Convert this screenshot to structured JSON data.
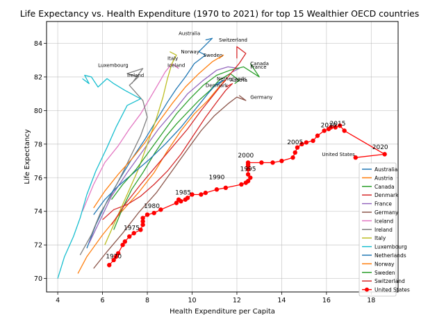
{
  "chart_data": {
    "type": "line",
    "title": "Life Expectancy vs. Health Expenditure (1970 to 2021) for top 15 Wealthier OECD countries",
    "xlabel": "Health Expenditure per Capita",
    "ylabel": "Life Expectancy",
    "xlim": [
      3.5,
      19.2
    ],
    "ylim": [
      69.2,
      85.3
    ],
    "x_ticks": [
      4,
      6,
      8,
      10,
      12,
      14,
      16,
      18
    ],
    "y_ticks": [
      70,
      72,
      74,
      76,
      78,
      80,
      82,
      84
    ],
    "grid": true,
    "legend_position": "lower right",
    "series": [
      {
        "name": "Australia",
        "color": "#1f77b4",
        "points": [
          [
            5.3,
            71.8
          ],
          [
            5.7,
            73.2
          ],
          [
            6.2,
            74.6
          ],
          [
            6.8,
            76.0
          ],
          [
            7.3,
            77.1
          ],
          [
            7.9,
            78.3
          ],
          [
            8.4,
            79.4
          ],
          [
            8.9,
            80.5
          ],
          [
            9.3,
            81.3
          ],
          [
            9.7,
            82.0
          ],
          [
            10.1,
            82.8
          ],
          [
            10.6,
            83.3
          ],
          [
            10.3,
            83.5
          ],
          [
            10.9,
            84.3
          ],
          [
            10.6,
            84.2
          ]
        ],
        "end_label": "Australia",
        "end_label_xy": [
          9.4,
          84.5
        ]
      },
      {
        "name": "Austria",
        "color": "#ff7f0e",
        "points": [
          [
            4.9,
            70.3
          ],
          [
            5.3,
            71.3
          ],
          [
            6.0,
            72.6
          ],
          [
            6.8,
            73.9
          ],
          [
            7.6,
            75.1
          ],
          [
            8.3,
            76.3
          ],
          [
            8.9,
            77.6
          ],
          [
            9.5,
            78.8
          ],
          [
            10.1,
            79.8
          ],
          [
            10.7,
            80.6
          ],
          [
            11.2,
            81.4
          ],
          [
            11.5,
            81.8
          ],
          [
            11.2,
            81.6
          ]
        ],
        "end_label": "Austria",
        "end_label_xy": [
          11.7,
          81.7
        ]
      },
      {
        "name": "Canada",
        "color": "#2ca02c",
        "points": [
          [
            6.5,
            72.9
          ],
          [
            6.9,
            74.2
          ],
          [
            7.3,
            75.3
          ],
          [
            7.8,
            76.3
          ],
          [
            8.3,
            77.4
          ],
          [
            8.8,
            78.4
          ],
          [
            9.3,
            79.2
          ],
          [
            9.8,
            79.9
          ],
          [
            10.3,
            80.6
          ],
          [
            10.8,
            81.2
          ],
          [
            11.2,
            81.8
          ],
          [
            11.7,
            82.2
          ],
          [
            12.1,
            81.8
          ],
          [
            11.9,
            81.6
          ]
        ],
        "end_label": "Canada",
        "end_label_xy": [
          12.6,
          82.7
        ]
      },
      {
        "name": "Denmark",
        "color": "#d62728",
        "points": [
          [
            6.0,
            73.5
          ],
          [
            6.5,
            74.1
          ],
          [
            7.1,
            74.4
          ],
          [
            7.7,
            74.9
          ],
          [
            8.3,
            75.6
          ],
          [
            8.9,
            76.4
          ],
          [
            9.5,
            77.4
          ],
          [
            10.0,
            78.4
          ],
          [
            10.6,
            79.6
          ],
          [
            11.1,
            80.5
          ],
          [
            11.5,
            81.2
          ],
          [
            11.8,
            81.6
          ],
          [
            11.5,
            81.4
          ]
        ],
        "end_label": "Denmark",
        "end_label_xy": [
          10.6,
          81.4
        ]
      },
      {
        "name": "France",
        "color": "#9467bd",
        "points": [
          [
            5.4,
            72.1
          ],
          [
            5.9,
            73.5
          ],
          [
            6.4,
            74.9
          ],
          [
            7.1,
            76.3
          ],
          [
            7.8,
            77.6
          ],
          [
            8.5,
            78.9
          ],
          [
            9.2,
            80.0
          ],
          [
            9.8,
            81.0
          ],
          [
            10.5,
            81.8
          ],
          [
            11.1,
            82.4
          ],
          [
            11.6,
            82.6
          ],
          [
            12.1,
            82.5
          ],
          [
            11.8,
            82.3
          ]
        ],
        "end_label": "France",
        "end_label_xy": [
          12.6,
          82.5
        ]
      },
      {
        "name": "Germany",
        "color": "#8c564b",
        "points": [
          [
            5.6,
            70.6
          ],
          [
            6.2,
            71.6
          ],
          [
            6.9,
            72.7
          ],
          [
            7.6,
            73.9
          ],
          [
            8.4,
            75.1
          ],
          [
            9.1,
            76.4
          ],
          [
            9.8,
            77.7
          ],
          [
            10.4,
            78.8
          ],
          [
            11.0,
            79.7
          ],
          [
            11.6,
            80.4
          ],
          [
            12.0,
            80.8
          ],
          [
            12.4,
            80.6
          ],
          [
            12.1,
            80.9
          ]
        ],
        "end_label": "Germany",
        "end_label_xy": [
          12.6,
          80.7
        ]
      },
      {
        "name": "Iceland",
        "color": "#e377c2",
        "points": [
          [
            5.1,
            74.0
          ],
          [
            5.6,
            75.6
          ],
          [
            6.1,
            76.9
          ],
          [
            6.7,
            77.9
          ],
          [
            7.2,
            78.9
          ],
          [
            7.7,
            79.8
          ],
          [
            8.1,
            80.7
          ],
          [
            8.5,
            81.6
          ],
          [
            8.8,
            82.3
          ],
          [
            9.1,
            82.8
          ],
          [
            9.4,
            82.5
          ]
        ],
        "end_label": "Iceland",
        "end_label_xy": [
          8.9,
          82.6
        ]
      },
      {
        "name": "Ireland",
        "color": "#7f7f7f",
        "points": [
          [
            5.0,
            71.4
          ],
          [
            5.5,
            72.6
          ],
          [
            5.9,
            73.9
          ],
          [
            6.4,
            75.0
          ],
          [
            6.9,
            76.3
          ],
          [
            7.3,
            77.4
          ],
          [
            7.7,
            78.5
          ],
          [
            8.0,
            79.6
          ],
          [
            7.8,
            80.6
          ],
          [
            7.2,
            81.5
          ],
          [
            7.6,
            82.0
          ],
          [
            7.1,
            82.2
          ],
          [
            7.8,
            82.5
          ],
          [
            7.3,
            81.6
          ]
        ],
        "end_label": "Ireland",
        "end_label_xy": [
          7.1,
          82.0
        ]
      },
      {
        "name": "Italy",
        "color": "#bcbd22",
        "points": [
          [
            6.1,
            72.0
          ],
          [
            6.6,
            73.5
          ],
          [
            7.1,
            75.0
          ],
          [
            7.6,
            76.5
          ],
          [
            8.0,
            78.0
          ],
          [
            8.4,
            79.5
          ],
          [
            8.7,
            80.8
          ],
          [
            8.9,
            81.9
          ],
          [
            9.1,
            82.8
          ],
          [
            9.3,
            83.3
          ],
          [
            9.0,
            83.5
          ]
        ],
        "end_label": "Italy",
        "end_label_xy": [
          8.9,
          83.0
        ]
      },
      {
        "name": "Luxembourg",
        "color": "#17becf",
        "points": [
          [
            4.0,
            70.0
          ],
          [
            4.3,
            71.3
          ],
          [
            4.7,
            72.5
          ],
          [
            5.0,
            73.6
          ],
          [
            5.3,
            75.0
          ],
          [
            5.7,
            76.4
          ],
          [
            6.2,
            77.8
          ],
          [
            6.6,
            79.0
          ],
          [
            7.1,
            80.3
          ],
          [
            7.7,
            80.7
          ],
          [
            7.0,
            81.2
          ],
          [
            6.5,
            81.6
          ],
          [
            6.2,
            81.9
          ],
          [
            5.8,
            81.4
          ],
          [
            5.5,
            82.0
          ],
          [
            5.2,
            82.1
          ],
          [
            5.4,
            81.6
          ],
          [
            5.1,
            81.9
          ]
        ],
        "end_label": "Luxembourg",
        "end_label_xy": [
          5.8,
          82.6
        ]
      },
      {
        "name": "Netherlands",
        "color": "#1f77b4",
        "points": [
          [
            5.6,
            73.8
          ],
          [
            6.1,
            74.7
          ],
          [
            6.7,
            75.5
          ],
          [
            7.4,
            76.3
          ],
          [
            8.1,
            77.1
          ],
          [
            8.8,
            78.0
          ],
          [
            9.5,
            79.0
          ],
          [
            10.1,
            80.0
          ],
          [
            10.7,
            81.0
          ],
          [
            11.1,
            81.6
          ],
          [
            11.4,
            81.8
          ],
          [
            11.1,
            81.5
          ]
        ],
        "end_label": "Netherlands",
        "end_label_xy": [
          11.1,
          81.8
        ]
      },
      {
        "name": "Norway",
        "color": "#ff7f0e",
        "points": [
          [
            5.6,
            74.2
          ],
          [
            6.1,
            75.2
          ],
          [
            6.7,
            76.2
          ],
          [
            7.3,
            77.1
          ],
          [
            7.9,
            78.1
          ],
          [
            8.5,
            79.3
          ],
          [
            9.1,
            80.4
          ],
          [
            9.7,
            81.4
          ],
          [
            10.3,
            82.2
          ],
          [
            10.9,
            82.9
          ],
          [
            11.4,
            83.3
          ],
          [
            11.2,
            83.1
          ]
        ],
        "end_label": "Norway",
        "end_label_xy": [
          9.5,
          83.4
        ]
      },
      {
        "name": "Sweden",
        "color": "#2ca02c",
        "points": [
          [
            6.4,
            74.7
          ],
          [
            6.9,
            75.6
          ],
          [
            7.5,
            76.5
          ],
          [
            8.1,
            77.6
          ],
          [
            8.7,
            78.7
          ],
          [
            9.3,
            79.8
          ],
          [
            9.9,
            80.7
          ],
          [
            10.5,
            81.5
          ],
          [
            11.1,
            82.1
          ],
          [
            11.7,
            82.4
          ],
          [
            12.3,
            82.6
          ],
          [
            13.0,
            82.0
          ],
          [
            12.6,
            82.8
          ]
        ],
        "end_label": "Sweden",
        "end_label_xy": [
          10.5,
          83.2
        ]
      },
      {
        "name": "Switzerland",
        "color": "#d62728",
        "points": [
          [
            6.4,
            73.2
          ],
          [
            7.0,
            74.4
          ],
          [
            7.7,
            75.6
          ],
          [
            8.4,
            76.7
          ],
          [
            9.1,
            77.8
          ],
          [
            9.8,
            78.9
          ],
          [
            10.4,
            80.0
          ],
          [
            11.0,
            81.0
          ],
          [
            11.6,
            82.0
          ],
          [
            12.1,
            82.8
          ],
          [
            12.4,
            83.4
          ],
          [
            12.0,
            83.8
          ],
          [
            12.0,
            83.1
          ]
        ],
        "end_label": "Switzerland",
        "end_label_xy": [
          11.2,
          84.1
        ]
      },
      {
        "name": "United States",
        "color": "#ff0000",
        "marker": "o",
        "points": [
          [
            6.3,
            70.8
          ],
          [
            6.5,
            71.1
          ],
          [
            6.6,
            71.3
          ],
          [
            6.7,
            71.5
          ],
          [
            6.9,
            72.0
          ],
          [
            7.0,
            72.2
          ],
          [
            7.2,
            72.5
          ],
          [
            7.4,
            72.7
          ],
          [
            7.7,
            72.9
          ],
          [
            7.8,
            73.2
          ],
          [
            7.8,
            73.4
          ],
          [
            7.8,
            73.6
          ],
          [
            8.0,
            73.8
          ],
          [
            8.3,
            73.9
          ],
          [
            8.6,
            74.1
          ],
          [
            9.3,
            74.5
          ],
          [
            9.4,
            74.7
          ],
          [
            9.5,
            74.6
          ],
          [
            9.7,
            74.7
          ],
          [
            9.8,
            74.8
          ],
          [
            10.0,
            75.0
          ],
          [
            10.4,
            75.0
          ],
          [
            10.6,
            75.1
          ],
          [
            11.1,
            75.3
          ],
          [
            11.5,
            75.4
          ],
          [
            12.2,
            75.6
          ],
          [
            12.4,
            75.7
          ],
          [
            12.5,
            75.8
          ],
          [
            12.6,
            76.0
          ],
          [
            12.5,
            76.2
          ],
          [
            12.5,
            76.5
          ],
          [
            12.5,
            76.7
          ],
          [
            12.5,
            76.8
          ],
          [
            12.5,
            76.9
          ],
          [
            13.1,
            76.9
          ],
          [
            13.6,
            76.9
          ],
          [
            14.0,
            77.0
          ],
          [
            14.5,
            77.2
          ],
          [
            14.6,
            77.5
          ],
          [
            14.7,
            77.8
          ],
          [
            14.9,
            78.0
          ],
          [
            15.1,
            78.1
          ],
          [
            15.4,
            78.2
          ],
          [
            15.6,
            78.5
          ],
          [
            15.9,
            78.8
          ],
          [
            16.1,
            78.9
          ],
          [
            16.2,
            79.0
          ],
          [
            16.4,
            79.0
          ],
          [
            16.6,
            79.1
          ],
          [
            16.8,
            78.8
          ],
          [
            18.6,
            77.4
          ],
          [
            17.3,
            77.2
          ]
        ],
        "point_labels": [
          {
            "text": "1970",
            "xy": [
              6.5,
              71.2
            ]
          },
          {
            "text": "1975",
            "xy": [
              7.3,
              72.9
            ]
          },
          {
            "text": "1980",
            "xy": [
              8.2,
              74.2
            ]
          },
          {
            "text": "1985",
            "xy": [
              9.6,
              75.0
            ]
          },
          {
            "text": "1990",
            "xy": [
              11.1,
              75.9
            ]
          },
          {
            "text": "1995",
            "xy": [
              12.5,
              76.4
            ]
          },
          {
            "text": "2000",
            "xy": [
              12.4,
              77.2
            ]
          },
          {
            "text": "2005",
            "xy": [
              14.6,
              78.0
            ]
          },
          {
            "text": "2010",
            "xy": [
              16.1,
              79.0
            ]
          },
          {
            "text": "2015",
            "xy": [
              16.5,
              79.1
            ]
          },
          {
            "text": "2020",
            "xy": [
              18.4,
              77.7
            ]
          }
        ],
        "end_label": "United States",
        "end_label_xy": [
          15.8,
          77.3
        ]
      }
    ]
  }
}
